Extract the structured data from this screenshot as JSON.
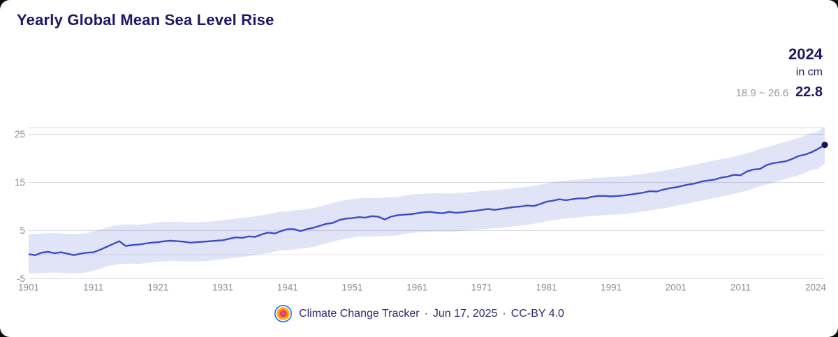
{
  "title": "Yearly Global Mean Sea Level Rise",
  "readout": {
    "year": "2024",
    "unit": "in cm",
    "range": "18.9 ~ 26.6",
    "value": "22.8"
  },
  "footer": {
    "brand": "Climate Change Tracker",
    "separator": "·",
    "date": "Jun 17, 2025",
    "license": "CC-BY 4.0"
  },
  "colors": {
    "page_bg": "#0b0b0c",
    "card_bg": "#ffffff",
    "title_navy": "#1e1768",
    "footer_navy": "#2d2a6e",
    "muted_gray": "#9b9ba6",
    "axis_gray": "#8c8c95",
    "gridline": "#d9d9e0",
    "gridline_zero": "#e4e4ea",
    "line_blue": "#3a4ec5",
    "band_lavender": "rgba(90,98,210,0.18)",
    "marker_navy": "#171252",
    "logo_rings": [
      "#1d6ff2",
      "#ffb000",
      "#ff7a00",
      "#f43b2e",
      "#c934b0"
    ]
  },
  "chart_data": {
    "type": "line",
    "title": "Yearly Global Mean Sea Level Rise",
    "unit": "cm",
    "xlabel": "",
    "ylabel": "",
    "grid": true,
    "legend": false,
    "year_start": 1901,
    "year_end": 2024,
    "values": [
      0.1,
      -0.1,
      0.4,
      0.6,
      0.3,
      0.5,
      0.2,
      -0.1,
      0.2,
      0.4,
      0.5,
      1.0,
      1.6,
      2.2,
      2.8,
      1.8,
      2.0,
      2.1,
      2.3,
      2.5,
      2.6,
      2.8,
      2.9,
      2.8,
      2.7,
      2.5,
      2.6,
      2.7,
      2.8,
      2.9,
      3.0,
      3.3,
      3.6,
      3.5,
      3.8,
      3.7,
      4.2,
      4.6,
      4.4,
      4.9,
      5.3,
      5.3,
      4.9,
      5.3,
      5.6,
      6.0,
      6.4,
      6.6,
      7.2,
      7.5,
      7.6,
      7.8,
      7.7,
      8.0,
      7.9,
      7.3,
      7.9,
      8.2,
      8.3,
      8.4,
      8.6,
      8.8,
      8.9,
      8.7,
      8.6,
      8.9,
      8.7,
      8.8,
      9.0,
      9.1,
      9.3,
      9.5,
      9.3,
      9.5,
      9.7,
      9.9,
      10.0,
      10.2,
      10.1,
      10.5,
      11.0,
      11.2,
      11.5,
      11.3,
      11.5,
      11.7,
      11.7,
      12.0,
      12.2,
      12.2,
      12.1,
      12.2,
      12.3,
      12.5,
      12.7,
      12.9,
      13.2,
      13.1,
      13.5,
      13.8,
      14.0,
      14.3,
      14.6,
      14.8,
      15.2,
      15.4,
      15.6,
      16.0,
      16.2,
      16.6,
      16.5,
      17.3,
      17.7,
      17.8,
      18.6,
      19.0,
      19.2,
      19.4,
      19.9,
      20.5,
      20.8,
      21.3,
      22.0,
      22.8
    ],
    "latest": {
      "year": 2024,
      "value": 22.8,
      "range_low": 18.9,
      "range_high": 26.6
    },
    "uncertainty_halfwidth_start": 4.1,
    "uncertainty_halfwidth_end": 3.85,
    "ylim": [
      -5,
      26.4
    ],
    "ytick_values": [
      25,
      15,
      5,
      -5
    ],
    "ytick_labels": [
      "25",
      "15",
      "5",
      "-5"
    ],
    "gridline_values": [
      25,
      15,
      5,
      0,
      -5
    ],
    "xtick_years": [
      1901,
      1911,
      1921,
      1931,
      1941,
      1951,
      1961,
      1971,
      1981,
      1991,
      2001,
      2011,
      2024
    ]
  }
}
